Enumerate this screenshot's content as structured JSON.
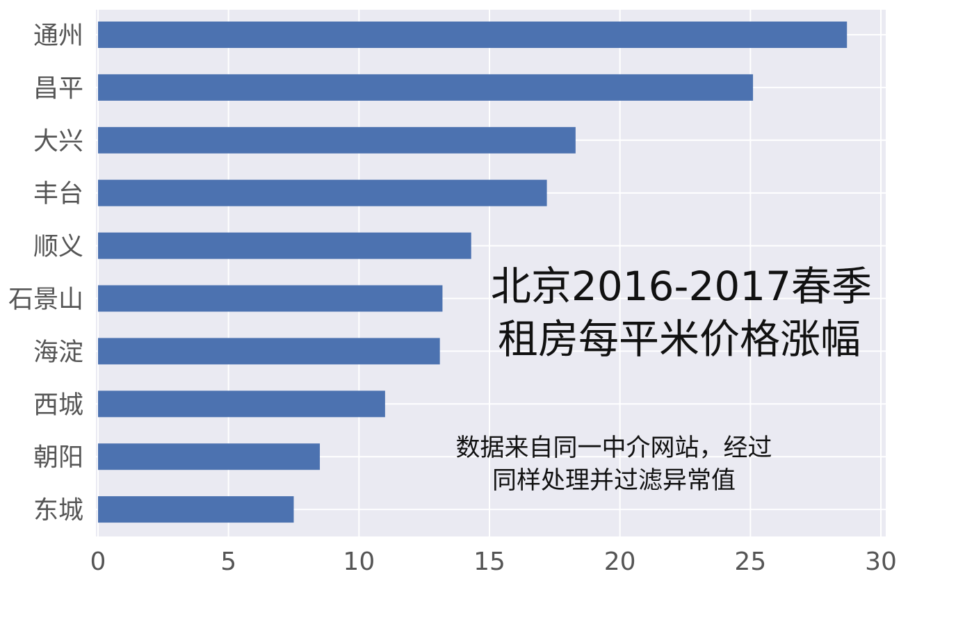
{
  "chart_data": {
    "type": "bar",
    "orientation": "horizontal",
    "categories": [
      "通州",
      "昌平",
      "大兴",
      "丰台",
      "顺义",
      "石景山",
      "海淀",
      "西城",
      "朝阳",
      "东城"
    ],
    "values": [
      28.7,
      25.1,
      18.3,
      17.2,
      14.3,
      13.2,
      13.1,
      11.0,
      8.5,
      7.5
    ],
    "xlim": [
      0,
      30
    ],
    "xticks": [
      "0",
      "5",
      "10",
      "15",
      "20",
      "25",
      "30"
    ],
    "xlabel": "",
    "ylabel": "",
    "grid": true,
    "bar_color": "#4c72b0",
    "background_color": "#eaeaf2",
    "annotations": {
      "title_lines": [
        "北京2016-2017春季",
        "租房每平米价格涨幅"
      ],
      "note_lines": [
        "数据来自同一中介网站，经过",
        "同样处理并过滤异常值"
      ]
    }
  }
}
